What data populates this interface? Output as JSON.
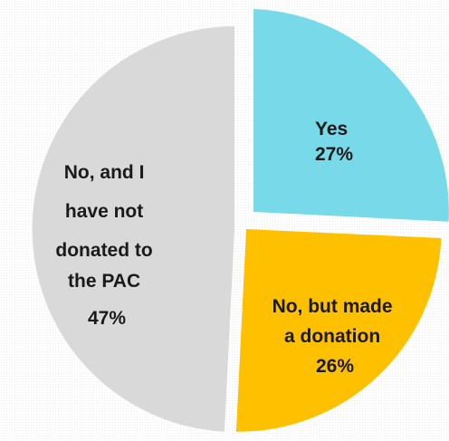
{
  "chart_data": {
    "type": "pie",
    "slices": [
      {
        "label_lines": [
          "Yes",
          "27%"
        ],
        "value": 27,
        "color": "#78d9e8"
      },
      {
        "label_lines": [
          "No, but made",
          "a donation",
          "26%"
        ],
        "value": 26,
        "color": "#ffc000"
      },
      {
        "label_lines": [
          "No,  and I",
          "have not",
          "donated to",
          "the PAC",
          "47%"
        ],
        "value": 47,
        "color": "#d9d9d9"
      }
    ]
  }
}
